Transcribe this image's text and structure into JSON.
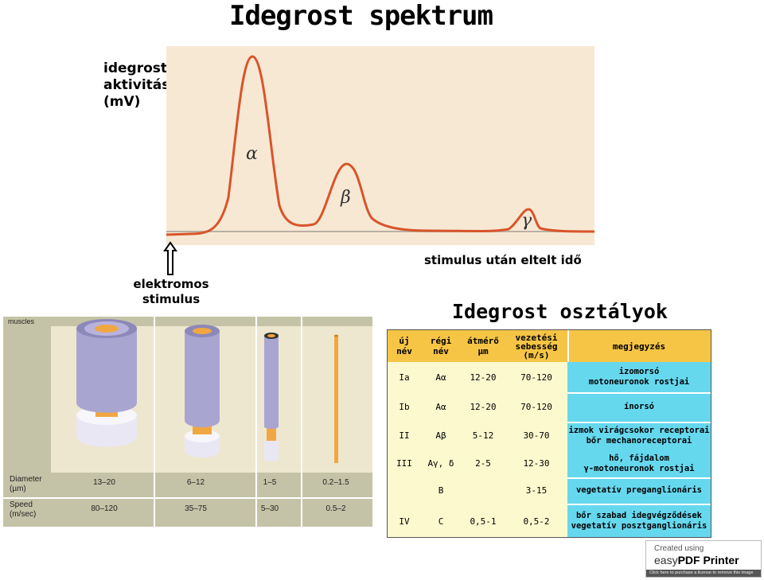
{
  "title": "Idegrost spektrum",
  "spectrum": {
    "ylabel": [
      "idegrost",
      "aktivitás",
      "(mV)"
    ],
    "xlabel": "stimulus után eltelt idő",
    "stimulus_label": [
      "elektromos",
      "stimulus"
    ],
    "peaks": [
      {
        "label": "α",
        "rel_height": 1.0
      },
      {
        "label": "β",
        "rel_height": 0.42
      },
      {
        "label": "γ",
        "rel_height": 0.14
      }
    ],
    "colors": {
      "background": "#f7e8d4",
      "curve": "#d9542a",
      "baseline": "#b9b0a4"
    }
  },
  "fiber_diagram": {
    "row_labels": {
      "top": "muscles",
      "diameter": [
        "Diameter",
        "(µm)"
      ],
      "speed": [
        "Speed",
        "(m/sec)"
      ]
    },
    "columns": [
      {
        "diameter": "13–20",
        "speed": "80–120"
      },
      {
        "diameter": "6–12",
        "speed": "35–75"
      },
      {
        "diameter": "1–5",
        "speed": "5–30"
      },
      {
        "diameter": "0.2–1.5",
        "speed": "0.5–2"
      }
    ],
    "colors": {
      "panel": "#ede7cf",
      "header": "#c5c3a7",
      "sheath": "#a9a5d1",
      "axon": "#f1a741",
      "node": "#e9e7f4"
    }
  },
  "classes": {
    "subtitle": "Idegrost osztályok",
    "headers": {
      "new_name": [
        "új",
        "név"
      ],
      "old_name": [
        "régi",
        "név"
      ],
      "diameter": [
        "átmérő",
        "µm"
      ],
      "speed": [
        "vezetési",
        "sebesség",
        "(m/s)"
      ],
      "notes": "megjegyzés"
    },
    "rows": [
      {
        "new": "Ia",
        "old": "Aα",
        "diameter": "12-20",
        "speed": "70-120",
        "note": [
          "izomorsó",
          "motoneuronok rostjai"
        ]
      },
      {
        "new": "Ib",
        "old": "Aα",
        "diameter": "12-20",
        "speed": "70-120",
        "note": [
          "ínorsó"
        ]
      },
      {
        "new": "II",
        "old": "Aβ",
        "diameter": "5-12",
        "speed": "30-70",
        "note": [
          "izmok virágcsokor receptorai",
          "bőr mechanoreceptorai"
        ]
      },
      {
        "new": "III",
        "old": "Aγ, δ",
        "diameter": "2-5",
        "speed": "12-30",
        "note": [
          "hő, fájdalom",
          "γ-motoneuronok rostjai"
        ]
      },
      {
        "new": "",
        "old": "B",
        "diameter": "",
        "speed": "3-15",
        "note": [
          "vegetatív preganglionáris"
        ]
      },
      {
        "new": "IV",
        "old": "C",
        "diameter": "0,5-1",
        "speed": "0,5-2",
        "note": [
          "bőr szabad idegvégződések",
          "vegetatív posztganglionáris"
        ]
      }
    ],
    "colors": {
      "background": "#fdf9cf",
      "header": "#f6c545",
      "notes": "#66d8ee",
      "grid": "#ffffff"
    }
  },
  "watermark": {
    "line1": "Created using",
    "brand_light": "easy",
    "brand_bold": "PDF Printer",
    "bar": "Click here to purchase a license to remove this image"
  }
}
